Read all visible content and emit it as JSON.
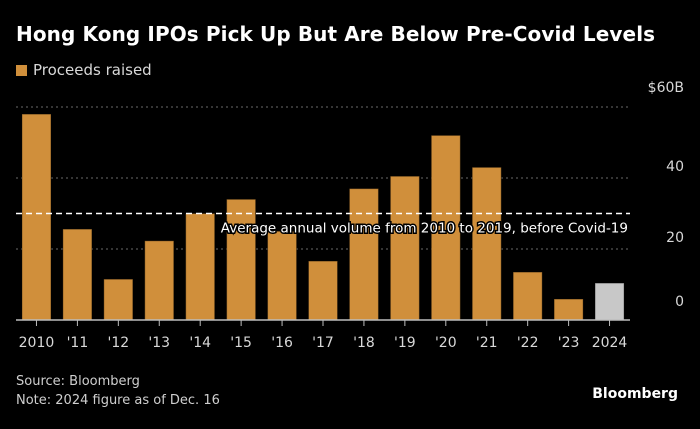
{
  "chart_data": {
    "type": "bar",
    "title": "Hong Kong IPOs Pick Up But Are Below Pre-Covid Levels",
    "legend": [
      {
        "name": "Proceeds raised",
        "color": "#d08f3b"
      }
    ],
    "legend_placement": "top-left",
    "categories": [
      "2010",
      "'11",
      "'12",
      "'13",
      "'14",
      "'15",
      "'16",
      "'17",
      "'18",
      "'19",
      "'20",
      "'21",
      "'22",
      "'23",
      "2024"
    ],
    "series": [
      {
        "name": "Proceeds raised",
        "values": [
          58,
          25.6,
          11.5,
          22.3,
          30,
          34,
          25,
          16.6,
          37,
          40.5,
          52,
          43,
          13.5,
          5.9,
          10.4
        ]
      }
    ],
    "bar_colors": [
      "#d08f3b",
      "#d08f3b",
      "#d08f3b",
      "#d08f3b",
      "#d08f3b",
      "#d08f3b",
      "#d08f3b",
      "#d08f3b",
      "#d08f3b",
      "#d08f3b",
      "#d08f3b",
      "#d08f3b",
      "#d08f3b",
      "#d08f3b",
      "#c8c8c8"
    ],
    "yticks": [
      0,
      20,
      40,
      60
    ],
    "ytick_labels": [
      "0",
      "20",
      "40",
      "$60B"
    ],
    "ylim": [
      0,
      60
    ],
    "grid": true,
    "xlabel": "",
    "ylabel": "",
    "annotation": {
      "text": "Average annual volume from 2010 to 2019, before Covid-19",
      "value": 30
    }
  },
  "header": {
    "title": "Hong Kong IPOs Pick Up But Are Below Pre-Covid Levels",
    "legend_label": "Proceeds raised"
  },
  "footer": {
    "source": "Source: Bloomberg",
    "note": "Note: 2024 figure as of Dec. 16",
    "brand": "Bloomberg"
  }
}
